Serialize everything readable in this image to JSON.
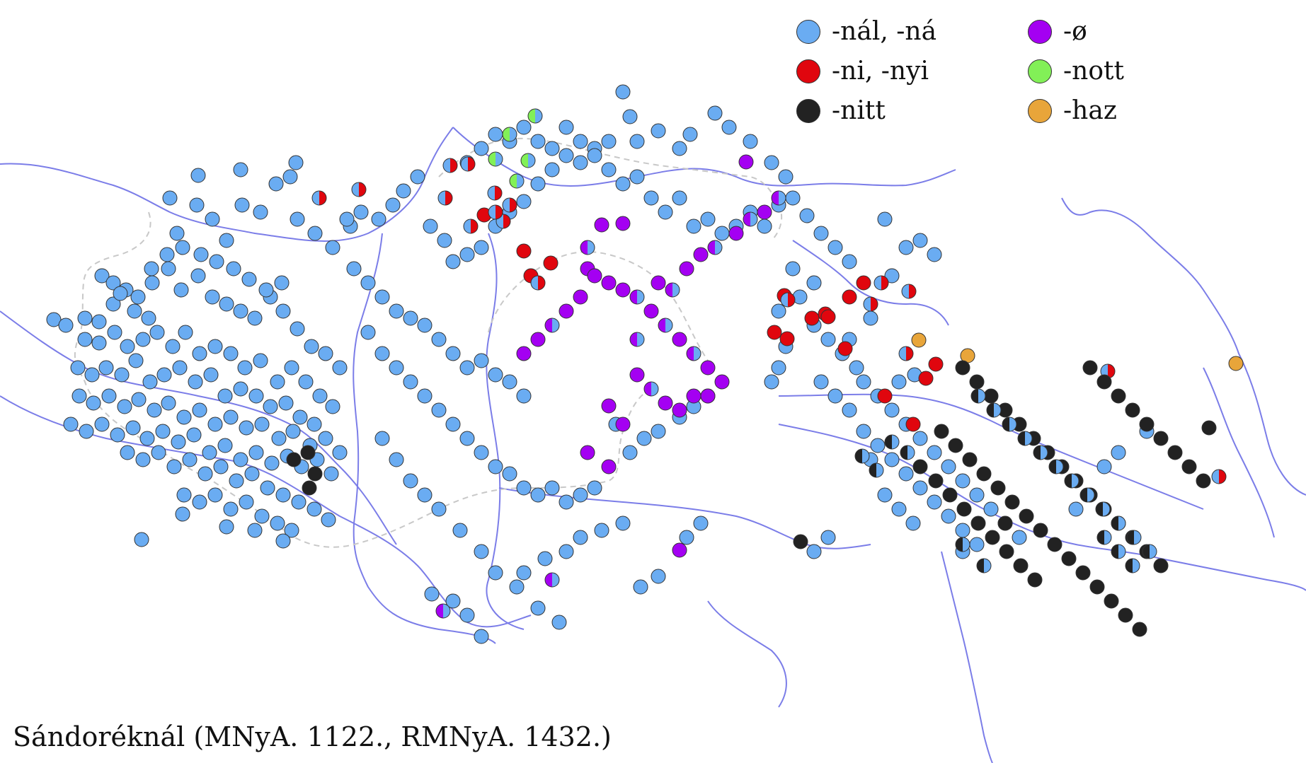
{
  "caption": "Sándoréknál (MNyA. 1122., RMNyA. 1432.)",
  "legend": [
    {
      "label": "-nál, -ná",
      "color": "#6aacf2",
      "name": "legend-nal-na"
    },
    {
      "label": "-ni, -nyi",
      "color": "#e0060e",
      "name": "legend-ni-nyi"
    },
    {
      "label": "-nitt",
      "color": "#222222",
      "name": "legend-nitt"
    },
    {
      "label": "-ø",
      "color": "#a400f2",
      "name": "legend-zero"
    },
    {
      "label": "-nott",
      "color": "#82f057",
      "name": "legend-nott"
    },
    {
      "label": "-haz",
      "color": "#e8a53a",
      "name": "legend-haz"
    }
  ],
  "colors": {
    "river": "#7b7de8",
    "border": "#c8c8c8",
    "dot_outline": "#333333"
  }
}
